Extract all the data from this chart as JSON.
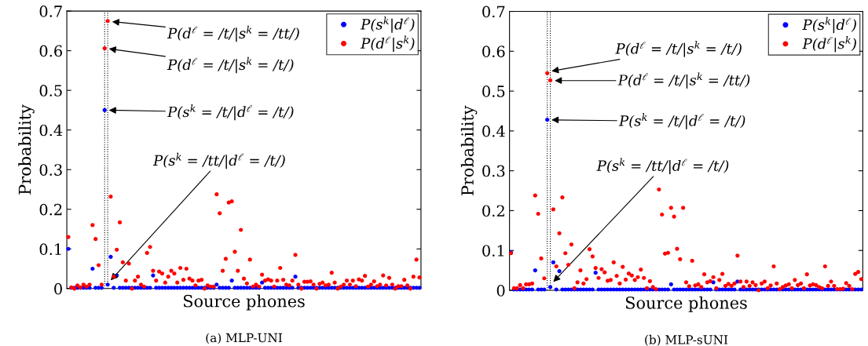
{
  "chart_data": [
    {
      "type": "scatter",
      "title": "(a) MLP-UNI",
      "xlabel": "Source phones",
      "ylabel": "Probability",
      "categories": [
        null,
        null,
        null,
        null,
        null,
        null,
        null,
        null,
        null,
        null,
        null,
        null,
        null,
        null,
        null,
        null,
        null,
        null,
        null,
        null,
        null,
        null,
        null,
        null,
        null,
        null,
        null,
        null,
        null,
        null,
        null,
        null,
        null,
        null,
        null,
        null,
        null,
        null,
        null,
        null,
        null,
        null,
        null,
        null,
        null,
        null,
        null,
        null,
        null,
        null,
        null,
        null,
        null,
        null,
        null,
        null,
        null,
        null,
        null,
        null,
        null,
        null,
        null,
        null,
        null,
        null,
        null,
        null,
        null,
        null,
        null,
        null,
        null,
        null,
        null,
        null,
        null,
        null,
        null,
        null,
        null,
        null,
        null,
        null,
        null,
        null,
        null,
        null,
        null,
        null,
        null,
        null,
        null,
        null,
        null,
        null,
        null,
        null,
        null,
        null,
        null,
        null,
        null,
        null,
        null,
        null,
        null,
        null,
        null,
        null,
        null,
        null,
        null,
        null,
        null,
        null,
        null
      ],
      "ylim": [
        0,
        0.7
      ],
      "yticks": [
        0,
        0.1,
        0.2,
        0.3,
        0.4,
        0.5,
        0.6,
        0.7
      ],
      "marker": "circle",
      "legend": "top right",
      "series": [
        {
          "name": "P(s$^{k}$|d$^{ℓ}$)",
          "color": "#0000ff",
          "values": [
            0.1,
            0.002,
            0.002,
            0.002,
            0.002,
            0.002,
            0.002,
            0.002,
            0.05,
            0.002,
            0.002,
            0.002,
            0.45,
            0.01,
            0.08,
            0.002,
            0.033,
            0.002,
            0.002,
            0.002,
            0.002,
            0.002,
            0.002,
            0.002,
            0.002,
            0.002,
            0.002,
            0.002,
            0.033,
            0.002,
            0.002,
            0.002,
            0.002,
            0.002,
            0.002,
            0.002,
            0.002,
            0.002,
            0.002,
            0.002,
            0.002,
            0.002,
            0.002,
            0.002,
            0.002,
            0.002,
            0.002,
            0.002,
            0.002,
            0.01,
            0.002,
            0.002,
            0.002,
            0.002,
            0.02,
            0.002,
            0.002,
            0.002,
            0.002,
            0.002,
            0.002,
            0.002,
            0.002,
            0.002,
            0.015,
            0.002,
            0.002,
            0.002,
            0.002,
            0.002,
            0.002,
            0.002,
            0.002,
            0.002,
            0.002,
            0.03,
            0.002,
            0.002,
            0.002,
            0.002,
            0.002,
            0.002,
            0.002,
            0.002,
            0.002,
            0.002,
            0.002,
            0.002,
            0.002,
            0.002,
            0.002,
            0.002,
            0.002,
            0.002,
            0.002,
            0.002,
            0.002,
            0.002,
            0.002,
            0.002,
            0.002,
            0.002,
            0.002,
            0.002,
            0.002,
            0.002,
            0.002,
            0.002,
            0.002,
            0.002,
            0.002,
            0.002,
            0.002,
            0.002,
            0.002,
            0.002,
            0.002
          ]
        },
        {
          "name": "P(d$^{ℓ}$|s$^{k}$)",
          "color": "#ff0000",
          "values": [
            0.13,
            0.003,
            0,
            0.008,
            0.003,
            0.01,
            0.005,
            0.01,
            0.16,
            0.125,
            0.059,
            0.01,
            0.606,
            0.675,
            0.232,
            0.03,
            0.098,
            0.167,
            0.066,
            0.02,
            0.063,
            0,
            0.02,
            0.03,
            0.01,
            0.005,
            0.09,
            0.105,
            0.045,
            0.02,
            0.043,
            0.038,
            0.015,
            0.03,
            0.045,
            0.038,
            0.015,
            0.052,
            0.022,
            0.05,
            0.025,
            0.02,
            0.008,
            0.02,
            0.022,
            0,
            0.008,
            0.005,
            0.005,
            0.238,
            0.19,
            0.045,
            0.075,
            0.217,
            0.22,
            0.093,
            0.045,
            0.148,
            0.025,
            0.013,
            0.073,
            0.005,
            0.01,
            0.005,
            0.035,
            0.02,
            0.023,
            0.02,
            0.005,
            0.02,
            0.052,
            0.022,
            0.01,
            0.008,
            0.02,
            0.085,
            0.01,
            0,
            0.017,
            0.017,
            0.018,
            0.01,
            0,
            0.012,
            0.015,
            0.008,
            0.01,
            0.04,
            0.015,
            0,
            0.005,
            0.01,
            0.02,
            0.01,
            0.02,
            0.006,
            0.023,
            0.02,
            0.032,
            0.005,
            0.01,
            0.018,
            0.006,
            0.01,
            0.033,
            0.008,
            0.027,
            0.01,
            0,
            0.006,
            0.006,
            0.022,
            0.008,
            0,
            0.03,
            0.073,
            0.028
          ]
        }
      ],
      "annotations": [
        "P(d$^{ℓ}$ = /t/|s$^{k}$ = /tt/)",
        "P(d$^{ℓ}$ = /t/|s$^{k}$ = /t/)",
        "P(s$^{k}$ = /t/|d$^{ℓ}$ = /t/)",
        "P(s$^{k}$ = /tt/|d$^{ℓ}$ = /t/)"
      ]
    },
    {
      "type": "scatter",
      "title": "(b) MLP-sUNI",
      "xlabel": "Source phones",
      "ylabel": "Probability",
      "categories": [
        null,
        null,
        null,
        null,
        null,
        null,
        null,
        null,
        null,
        null,
        null,
        null,
        null,
        null,
        null,
        null,
        null,
        null,
        null,
        null,
        null,
        null,
        null,
        null,
        null,
        null,
        null,
        null,
        null,
        null,
        null,
        null,
        null,
        null,
        null,
        null,
        null,
        null,
        null,
        null,
        null,
        null,
        null,
        null,
        null,
        null,
        null,
        null,
        null,
        null,
        null,
        null,
        null,
        null,
        null,
        null,
        null,
        null,
        null,
        null,
        null,
        null,
        null,
        null,
        null,
        null,
        null,
        null,
        null,
        null,
        null,
        null,
        null,
        null,
        null,
        null,
        null,
        null,
        null,
        null,
        null,
        null,
        null,
        null,
        null,
        null,
        null,
        null,
        null,
        null,
        null,
        null,
        null,
        null,
        null,
        null,
        null,
        null,
        null,
        null,
        null,
        null,
        null,
        null,
        null,
        null,
        null,
        null,
        null,
        null,
        null,
        null,
        null,
        null,
        null,
        null,
        null
      ],
      "ylim": [
        0,
        0.7
      ],
      "yticks": [
        0,
        0.1,
        0.2,
        0.3,
        0.4,
        0.5,
        0.6,
        0.7
      ],
      "marker": "circle",
      "legend": "top right",
      "series": [
        {
          "name": "P(s$^{k}$|d$^{ℓ}$)",
          "color": "#0000ff",
          "values": [
            0.095,
            0.002,
            0.002,
            0.002,
            0.002,
            0.002,
            0.002,
            0.002,
            0.05,
            0.002,
            0.002,
            0.002,
            0.428,
            0.008,
            0.07,
            0.002,
            0.048,
            0.002,
            0.002,
            0.002,
            0.002,
            0.002,
            0.002,
            0.002,
            0.002,
            0.002,
            0.002,
            0.002,
            0.044,
            0.002,
            0.002,
            0.002,
            0.002,
            0.002,
            0.002,
            0.002,
            0.002,
            0.002,
            0.002,
            0.002,
            0.002,
            0.002,
            0.002,
            0.002,
            0.002,
            0.002,
            0.002,
            0.002,
            0.002,
            0.002,
            0.002,
            0.002,
            0.002,
            0.015,
            0.002,
            0.002,
            0.002,
            0.002,
            0.002,
            0.002,
            0.002,
            0.002,
            0.002,
            0.002,
            0.002,
            0.002,
            0.002,
            0.02,
            0.002,
            0.002,
            0.002,
            0.002,
            0.002,
            0.002,
            0.002,
            0.022,
            0.002,
            0.002,
            0.002,
            0.002,
            0.002,
            0.002,
            0.002,
            0.002,
            0.002,
            0.002,
            0.002,
            0.002,
            0.002,
            0.002,
            0.002,
            0.002,
            0.002,
            0.002,
            0.002,
            0.002,
            0.002,
            0.002,
            0.002,
            0.002,
            0.002,
            0.002,
            0.002,
            0.002,
            0.002,
            0.002,
            0.002,
            0.002,
            0.002,
            0.002,
            0.002,
            0.002,
            0.002,
            0.002,
            0.002,
            0.002,
            0.002
          ]
        },
        {
          "name": "P(d$^{ℓ}$|s$^{k}$)",
          "color": "#ff0000",
          "values": [
            0.093,
            0.005,
            0.005,
            0.013,
            0.005,
            0.015,
            0.015,
            0.017,
            0.238,
            0.192,
            0.08,
            0.03,
            0.545,
            0.527,
            0.203,
            0.06,
            0.143,
            0.233,
            0.093,
            0.064,
            0.115,
            0.005,
            0.02,
            0.05,
            0.017,
            0.028,
            0.103,
            0.085,
            0.056,
            0.031,
            0.053,
            0.045,
            0.024,
            0.026,
            0.07,
            0.036,
            0.017,
            0.059,
            0.027,
            0.042,
            0.037,
            0.026,
            0.033,
            0.052,
            0.031,
            0.005,
            0.023,
            0.008,
            0.003,
            0.253,
            0.19,
            0.092,
            0.094,
            0.207,
            0.185,
            0.104,
            0.078,
            0.207,
            0.02,
            0.01,
            0.074,
            0.012,
            0.015,
            0.008,
            0.04,
            0.02,
            0.023,
            0.033,
            0.005,
            0.026,
            0.041,
            0.011,
            0.016,
            0.011,
            0.017,
            0.087,
            0.022,
            0.008,
            0.022,
            0.011,
            0.02,
            0.013,
            0,
            0.017,
            0.022,
            0.005,
            0.012,
            0.06,
            0.017,
            0.003,
            0.008,
            0.012,
            0.015,
            0.005,
            0.026,
            0.013,
            0.017,
            0.005,
            0.04,
            0.012,
            0.015,
            0.013,
            0.008,
            0.005,
            0.06,
            0.011,
            0.022,
            0.011,
            0.003,
            0.003,
            0.004,
            0.018,
            0.011,
            0.003,
            0.041,
            0.046,
            0.028
          ]
        }
      ],
      "annotations": [
        "P(d$^{ℓ}$ = /t/|s$^{k}$ = /t/)",
        "P(d$^{ℓ}$ = /t/|s$^{k}$ = /tt/)",
        "P(s$^{k}$ = /t/|d$^{ℓ}$ = /t/)",
        "P(s$^{k}$ = /tt/|d$^{ℓ}$ = /t/)"
      ]
    }
  ]
}
